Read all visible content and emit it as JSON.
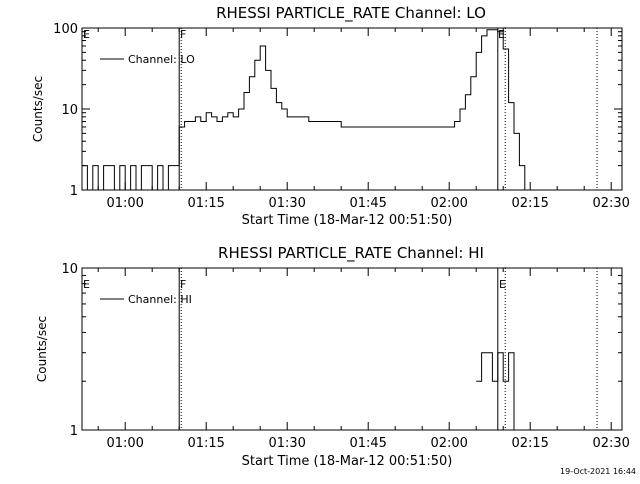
{
  "charts": {
    "lo": {
      "title": "RHESSI PARTICLE_RATE Channel: LO",
      "xlabel": "Start Time (18-Mar-12 00:51:50)",
      "ylabel": "Counts/sec",
      "legend": "Channel: LO",
      "markers": [
        "E",
        "F",
        "E"
      ]
    },
    "hi": {
      "title": "RHESSI PARTICLE_RATE Channel: HI",
      "xlabel": "Start Time (18-Mar-12 00:51:50)",
      "ylabel": "Counts/sec",
      "legend": "Channel: HI",
      "markers": [
        "E",
        "F",
        "E"
      ]
    }
  },
  "footer": {
    "date_stamp": "19-Oct-2021 16:44"
  },
  "chart_data": [
    {
      "type": "line",
      "title": "RHESSI PARTICLE_RATE Channel: LO",
      "xlabel": "Start Time (18-Mar-12 00:51:50)",
      "ylabel": "Counts/sec",
      "y_scale": "log",
      "xlim": [
        "00:52",
        "02:32"
      ],
      "ylim": [
        1,
        100
      ],
      "x_ticks": [
        "01:00",
        "01:15",
        "01:30",
        "01:45",
        "02:00",
        "02:15",
        "02:30"
      ],
      "y_ticks": [
        "1",
        "10",
        "100"
      ],
      "legend_position": "top-left",
      "vertical_lines": [
        {
          "time": "01:10",
          "style": "solid",
          "label": "F"
        },
        {
          "time": "01:10",
          "style": "dotted"
        },
        {
          "time": "02:09",
          "style": "solid",
          "label": "E"
        },
        {
          "time": "02:10",
          "style": "dotted"
        },
        {
          "time": "02:27",
          "style": "dotted"
        }
      ],
      "series": [
        {
          "name": "Channel: LO",
          "x": [
            "00:52",
            "00:53",
            "00:54",
            "00:55",
            "00:56",
            "00:57",
            "00:58",
            "00:59",
            "01:00",
            "01:01",
            "01:02",
            "01:03",
            "01:04",
            "01:05",
            "01:06",
            "01:07",
            "01:08",
            "01:09",
            "01:10",
            "01:10",
            "01:11",
            "01:12",
            "01:13",
            "01:14",
            "01:15",
            "01:16",
            "01:17",
            "01:18",
            "01:19",
            "01:20",
            "01:21",
            "01:22",
            "01:23",
            "01:24",
            "01:25",
            "01:26",
            "01:27",
            "01:28",
            "01:29",
            "01:30",
            "01:32",
            "01:34",
            "01:36",
            "01:38",
            "01:40",
            "01:42",
            "01:44",
            "01:46",
            "01:48",
            "01:50",
            "01:52",
            "01:54",
            "01:56",
            "01:58",
            "02:00",
            "02:01",
            "02:02",
            "02:03",
            "02:04",
            "02:05",
            "02:06",
            "02:07",
            "02:08",
            "02:09",
            "02:10",
            "02:11",
            "02:12",
            "02:13",
            "02:14",
            "02:15",
            "02:16",
            "02:17",
            "02:18",
            "02:19",
            "02:20",
            "02:21",
            "02:22",
            "02:23"
          ],
          "values": [
            2,
            1,
            2,
            1,
            2,
            2,
            1,
            2,
            1,
            2,
            1,
            2,
            2,
            1,
            2,
            1,
            2,
            2,
            2,
            6,
            7,
            7,
            8,
            7,
            9,
            8,
            7,
            8,
            9,
            8,
            10,
            16,
            25,
            40,
            60,
            30,
            18,
            12,
            10,
            8,
            8,
            7,
            7,
            7,
            6,
            6,
            6,
            6,
            6,
            6,
            6,
            6,
            6,
            6,
            6,
            7,
            10,
            15,
            25,
            50,
            80,
            95,
            95,
            90,
            55,
            12,
            5,
            2,
            1,
            1,
            1,
            1,
            1,
            1,
            1,
            1,
            1,
            1
          ]
        }
      ]
    },
    {
      "type": "line",
      "title": "RHESSI PARTICLE_RATE Channel: HI",
      "xlabel": "Start Time (18-Mar-12 00:51:50)",
      "ylabel": "Counts/sec",
      "y_scale": "log",
      "xlim": [
        "00:52",
        "02:32"
      ],
      "ylim": [
        1,
        10
      ],
      "x_ticks": [
        "01:00",
        "01:15",
        "01:30",
        "01:45",
        "02:00",
        "02:15",
        "02:30"
      ],
      "y_ticks": [
        "1",
        "10"
      ],
      "legend_position": "top-left",
      "vertical_lines": [
        {
          "time": "01:10",
          "style": "solid",
          "label": "F"
        },
        {
          "time": "01:10",
          "style": "dotted"
        },
        {
          "time": "02:09",
          "style": "solid",
          "label": "E"
        },
        {
          "time": "02:10",
          "style": "dotted"
        },
        {
          "time": "02:27",
          "style": "dotted"
        }
      ],
      "series": [
        {
          "name": "Channel: HI",
          "x": [
            "02:05",
            "02:06",
            "02:06",
            "02:07",
            "02:08",
            "02:09",
            "02:09",
            "02:10",
            "02:10",
            "02:11",
            "02:11",
            "02:12",
            "02:12"
          ],
          "values": [
            2,
            2,
            3,
            3,
            2,
            2,
            3,
            3,
            2,
            2,
            3,
            2,
            1
          ]
        }
      ]
    }
  ]
}
